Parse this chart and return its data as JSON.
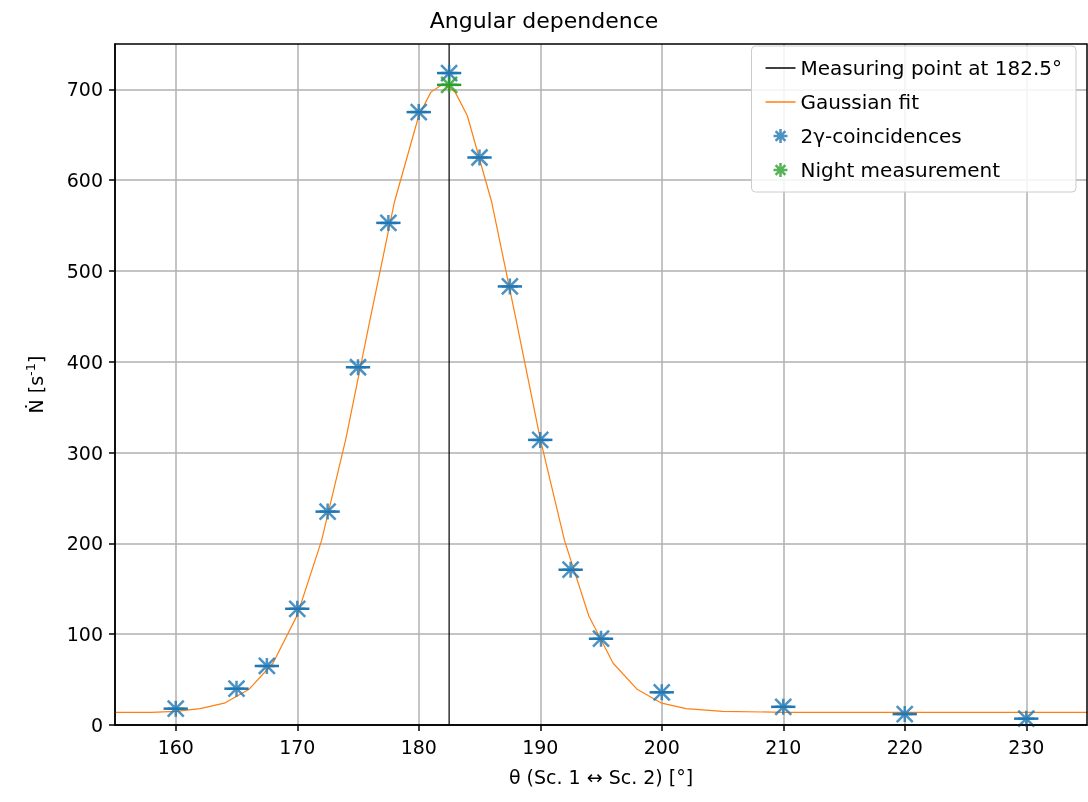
{
  "chart_data": {
    "type": "scatter",
    "title": "Angular dependence",
    "xlabel": "θ (Sc. 1 ↔ Sc. 2) [°]",
    "ylabel": "Ṅ [s$^{-1}$]",
    "xlim": [
      155,
      235
    ],
    "xticks": [
      160,
      170,
      180,
      190,
      200,
      210,
      220,
      230
    ],
    "ylim": [
      0,
      750
    ],
    "yticks": [
      0,
      100,
      200,
      300,
      400,
      500,
      600,
      700
    ],
    "grid": true,
    "legend": "top right",
    "series": [
      {
        "name": "Measuring point at 182.5°",
        "type": "line",
        "color": "#000000",
        "x": [
          182.5,
          182.5
        ],
        "values": [
          0,
          750
        ]
      },
      {
        "name": "Gaussian fit",
        "type": "line",
        "color": "#ff7f0e",
        "x": [
          155,
          158,
          160,
          162,
          164,
          166,
          168,
          170,
          172,
          174,
          176,
          178,
          180,
          181,
          182,
          183,
          184,
          186,
          188,
          190,
          192,
          194,
          196,
          198,
          200,
          202,
          205,
          210,
          220,
          235
        ],
        "values": [
          14,
          14,
          15,
          18,
          24,
          39,
          68,
          121,
          203,
          315,
          447,
          576,
          671,
          697,
          706,
          697,
          671,
          576,
          447,
          315,
          203,
          120,
          68,
          39,
          24,
          18,
          15,
          14,
          14,
          14
        ]
      },
      {
        "name": "2$^{}$γ-coincidences",
        "type": "scatter",
        "marker": "cross",
        "color": "#1f77b4",
        "x": [
          160,
          165,
          167.5,
          170,
          172.5,
          175,
          177.5,
          180,
          182.5,
          185,
          187.5,
          190,
          192.5,
          195,
          200,
          210,
          220,
          230
        ],
        "values": [
          18,
          40,
          65,
          128,
          235,
          394,
          553,
          675,
          718,
          625,
          483,
          314,
          171,
          95,
          36,
          20,
          12,
          7
        ],
        "xerrors": [
          1,
          1,
          1,
          1,
          1,
          1,
          1,
          1,
          1,
          1,
          1,
          1,
          1,
          1,
          1,
          1,
          1,
          1
        ]
      },
      {
        "name": "Night measurement",
        "type": "scatter",
        "marker": "cross",
        "color": "#2ca02c",
        "x": [
          182.5
        ],
        "values": [
          705
        ],
        "xerrors": [
          1
        ]
      }
    ]
  }
}
